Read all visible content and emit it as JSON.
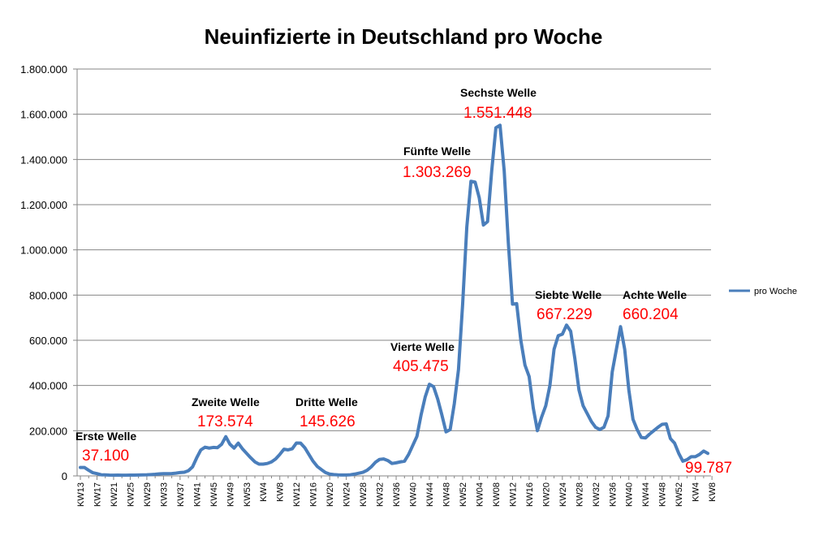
{
  "chart_data": {
    "type": "line",
    "title": "Neuinfizierte in Deutschland pro Woche",
    "xlabel": "",
    "ylabel": "",
    "ylim": [
      0,
      1800000
    ],
    "y_ticks": [
      "0",
      "200.000",
      "400.000",
      "600.000",
      "800.000",
      "1.000.000",
      "1.200.000",
      "1.400.000",
      "1.600.000",
      "1.800.000"
    ],
    "y_tick_values": [
      0,
      200000,
      400000,
      600000,
      800000,
      1000000,
      1200000,
      1400000,
      1600000,
      1800000
    ],
    "x_tick_labels": [
      "KW13",
      "KW17",
      "KW21",
      "KW25",
      "KW29",
      "KW33",
      "KW37",
      "KW41",
      "KW45",
      "KW49",
      "KW53",
      "KW4",
      "KW8",
      "KW12",
      "KW16",
      "KW20",
      "KW24",
      "KW28",
      "KW32",
      "KW36",
      "KW40",
      "KW44",
      "KW48",
      "KW52",
      "KW04",
      "KW08",
      "KW12",
      "KW16",
      "KW20",
      "KW24",
      "KW28",
      "KW32",
      "KW36",
      "KW40",
      "KW44",
      "KW48",
      "KW52",
      "KW4",
      "KW8"
    ],
    "grid": "horizontal",
    "legend": "right",
    "color": "#4a7ebb",
    "series": [
      {
        "name": "pro Woche",
        "values": [
          37100,
          37100,
          25000,
          14000,
          10000,
          5000,
          4500,
          3500,
          3000,
          3500,
          3000,
          3000,
          3500,
          3500,
          4000,
          4500,
          5000,
          6000,
          7000,
          9000,
          10000,
          10000,
          10500,
          12000,
          15000,
          16000,
          23000,
          40000,
          80000,
          115000,
          127000,
          123000,
          126000,
          125000,
          140000,
          173574,
          140000,
          123000,
          145000,
          120000,
          100000,
          80000,
          62000,
          52000,
          52000,
          55000,
          62000,
          75000,
          95000,
          118000,
          115000,
          120000,
          145626,
          145000,
          125000,
          95000,
          65000,
          42000,
          28000,
          15000,
          8000,
          6000,
          4500,
          4000,
          4000,
          5000,
          8000,
          12000,
          16000,
          25000,
          40000,
          60000,
          73000,
          75000,
          68000,
          55000,
          58000,
          62000,
          65000,
          95000,
          135000,
          175000,
          270000,
          350000,
          405475,
          395000,
          340000,
          270000,
          195000,
          205000,
          320000,
          470000,
          760000,
          1100000,
          1303269,
          1300000,
          1230000,
          1110000,
          1125000,
          1350000,
          1540000,
          1551448,
          1350000,
          1030000,
          760000,
          762000,
          600000,
          490000,
          440000,
          300000,
          200000,
          260000,
          310000,
          400000,
          560000,
          620000,
          627000,
          667229,
          640000,
          520000,
          380000,
          310000,
          275000,
          240000,
          215000,
          205000,
          215000,
          265000,
          460000,
          560000,
          660204,
          560000,
          380000,
          250000,
          205000,
          170000,
          168000,
          185000,
          200000,
          215000,
          228000,
          230000,
          165000,
          145000,
          100000,
          65000,
          72000,
          85000,
          85000,
          95000,
          110000,
          99787
        ]
      }
    ],
    "annotations": [
      {
        "name": "Erste Welle",
        "value": "37.100"
      },
      {
        "name": "Zweite Welle",
        "value": "173.574"
      },
      {
        "name": "Dritte Welle",
        "value": "145.626"
      },
      {
        "name": "Vierte Welle",
        "value": "405.475"
      },
      {
        "name": "Fünfte Welle",
        "value": "1.303.269"
      },
      {
        "name": "Sechste Welle",
        "value": "1.551.448"
      },
      {
        "name": "Siebte Welle",
        "value": "667.229"
      },
      {
        "name": "Achte Welle",
        "value": "660.204"
      },
      {
        "name": "",
        "value": "99.787"
      }
    ]
  }
}
